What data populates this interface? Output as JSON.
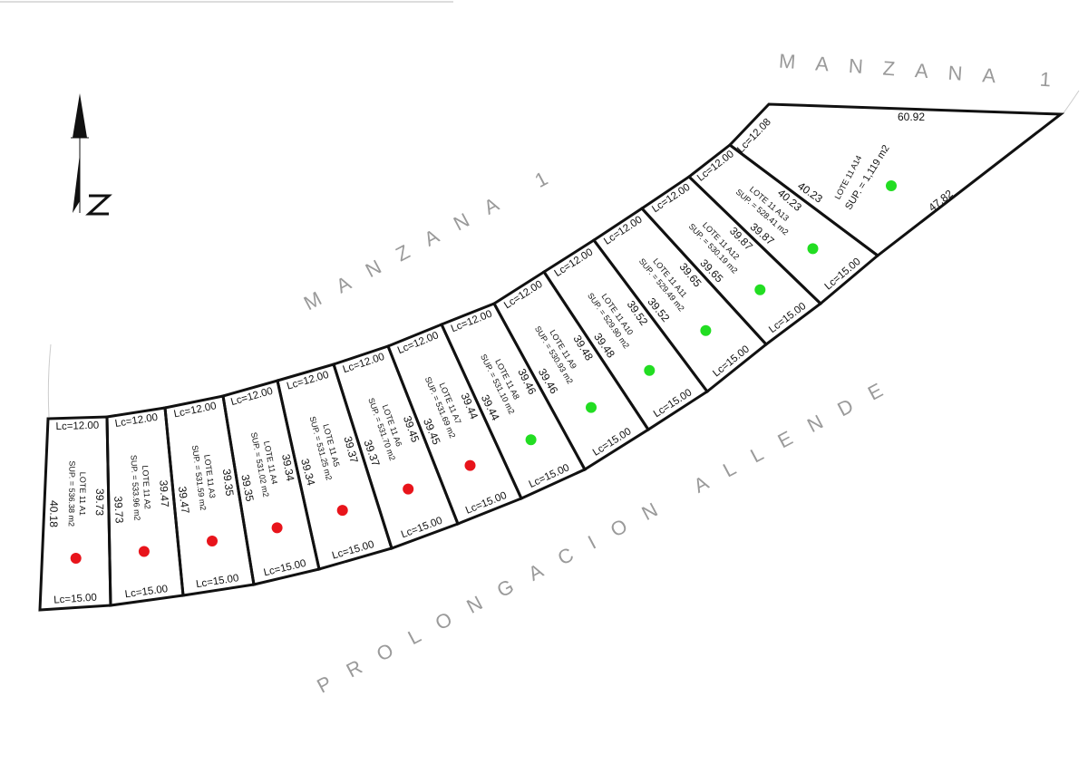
{
  "labels": {
    "block_top": "MANZANA 1",
    "block_center": "MANZANA 1",
    "street": "PROLONGACION ALLENDE"
  },
  "lots": [
    {
      "name": "LOTE 11 A1",
      "area": "SUP. = 536.38 m2",
      "front": "Lc=12.00",
      "back": "Lc=15.00",
      "sides": [
        "40.18",
        "39.73"
      ],
      "marker": "#e8141b"
    },
    {
      "name": "LOTE 11 A2",
      "area": "SUP. = 533.96 m2",
      "front": "Lc=12.00",
      "back": "Lc=15.00",
      "sides": [
        "39.73",
        "39.47"
      ],
      "marker": "#e8141b"
    },
    {
      "name": "LOTE 11 A3",
      "area": "SUP. = 531.59 m2",
      "front": "Lc=12.00",
      "back": "Lc=15.00",
      "sides": [
        "39.47",
        "39.35"
      ],
      "marker": "#e8141b"
    },
    {
      "name": "LOTE 11 A4",
      "area": "SUP. = 531.02 m2",
      "front": "Lc=12.00",
      "back": "Lc=15.00",
      "sides": [
        "39.35",
        "39.34"
      ],
      "marker": "#e8141b"
    },
    {
      "name": "LOTE 11 A5",
      "area": "SUP. = 531.25 m2",
      "front": "Lc=12.00",
      "back": "Lc=15.00",
      "sides": [
        "39.34",
        "39.37"
      ],
      "marker": "#e8141b"
    },
    {
      "name": "LOTE 11 A6",
      "area": "SUP. = 531.70 m2",
      "front": "Lc=12.00",
      "back": "Lc=15.00",
      "sides": [
        "39.37",
        "39.45"
      ],
      "marker": "#e8141b"
    },
    {
      "name": "LOTE 11 A7",
      "area": "SUP. = 531.69 m2",
      "front": "Lc=12.00",
      "back": "Lc=15.00",
      "sides": [
        "39.45",
        "39.44"
      ],
      "marker": "#e8141b"
    },
    {
      "name": "LOTE 11 A8",
      "area": "SUP. = 531.10 m2",
      "front": "Lc=12.00",
      "back": "Lc=15.00",
      "sides": [
        "39.44",
        "39.46"
      ],
      "marker": "#22dd22"
    },
    {
      "name": "LOTE 11 A9",
      "area": "SUP. = 530.93 m2",
      "front": "Lc=12.00",
      "back": "Lc=15.00",
      "sides": [
        "39.46",
        "39.48"
      ],
      "marker": "#22dd22"
    },
    {
      "name": "LOTE 11 A10",
      "area": "SUP. = 529.90 m2",
      "front": "Lc=12.00",
      "back": "Lc=15.00",
      "sides": [
        "39.48",
        "39.52"
      ],
      "marker": "#22dd22"
    },
    {
      "name": "LOTE 11 A11",
      "area": "SUP. = 529.49 m2",
      "front": "Lc=12.00",
      "back": "Lc=15.00",
      "sides": [
        "39.52",
        "39.65"
      ],
      "marker": "#22dd22"
    },
    {
      "name": "LOTE 11 A12",
      "area": "SUP. = 530.19 m2",
      "front": "Lc=12.00",
      "back": "Lc=15.00",
      "sides": [
        "39.65",
        "39.87"
      ],
      "marker": "#22dd22"
    },
    {
      "name": "LOTE 11 A13",
      "area": "SUP. = 528.41 m2",
      "front": "Lc=12.00",
      "back": "Lc=15.00",
      "sides": [
        "39.87",
        "40.23"
      ],
      "marker": "#22dd22"
    },
    {
      "name": "LOTE 11 A14",
      "area": "SUP. = 1,119 m2",
      "front": "Lc=12.08",
      "sides": [
        "40.23",
        "60.92",
        "47.82"
      ],
      "marker": "#22dd22"
    }
  ]
}
